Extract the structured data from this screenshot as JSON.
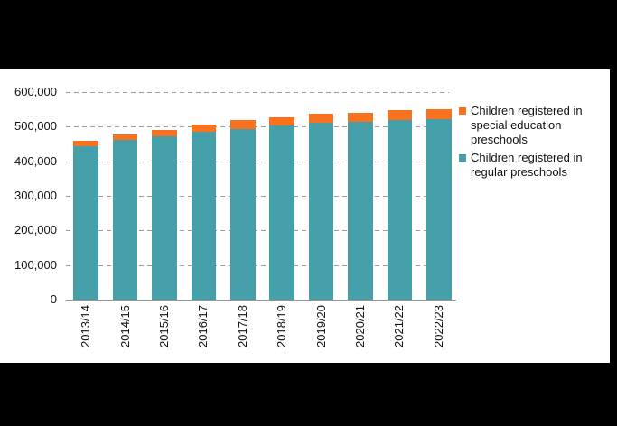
{
  "frame": {
    "background": "#000000",
    "panel_background": "#ffffff"
  },
  "chart_data": {
    "type": "bar",
    "stacked": true,
    "orientation": "vertical",
    "title": "",
    "xlabel": "",
    "ylabel": "",
    "categories": [
      "2013/14",
      "2014/15",
      "2015/16",
      "2016/17",
      "2017/18",
      "2018/19",
      "2019/20",
      "2020/21",
      "2021/22",
      "2022/23"
    ],
    "series": [
      {
        "name": "Children registered in regular preschools",
        "color": "#46A0A9",
        "values": [
          444000,
          462000,
          473000,
          486000,
          494000,
          503000,
          511000,
          514000,
          520000,
          521000
        ]
      },
      {
        "name": "Children registered in special education preschools",
        "color": "#F8721F",
        "values": [
          16000,
          16000,
          18000,
          20000,
          25000,
          25000,
          26000,
          26000,
          27000,
          29000
        ]
      }
    ],
    "ylim": [
      0,
      600000
    ],
    "yticks": [
      {
        "value": 0,
        "label": "0"
      },
      {
        "value": 100000,
        "label": "100,000"
      },
      {
        "value": 200000,
        "label": "200,000"
      },
      {
        "value": 300000,
        "label": "300,000"
      },
      {
        "value": 400000,
        "label": "400,000"
      },
      {
        "value": 500000,
        "label": "500,000"
      },
      {
        "value": 600000,
        "label": "600,000"
      }
    ],
    "grid": {
      "horizontal": "dashed",
      "color": "#9d9d9d"
    },
    "axis_line_color": "#949494",
    "text_color": "#111111",
    "legend_position": "right",
    "legend": [
      {
        "label": "Children registered in special education preschools",
        "color": "#F8721F"
      },
      {
        "label": "Children registered in regular preschools",
        "color": "#46A0A9"
      }
    ]
  }
}
